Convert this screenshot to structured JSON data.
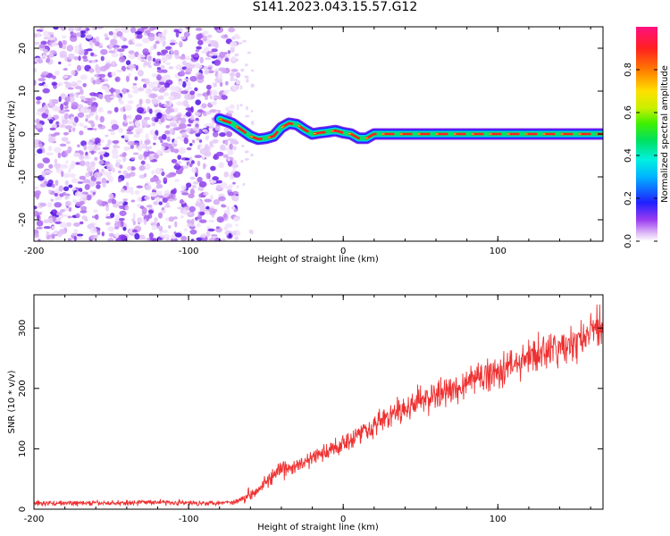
{
  "figure": {
    "title": "S141.2023.043.15.57.G12"
  },
  "chart_data": [
    {
      "type": "heatmap",
      "xlabel": "Height of straight line (km)",
      "ylabel": "Frequency (Hz)",
      "xlim": [
        -200,
        168
      ],
      "ylim": [
        -25,
        25
      ],
      "x_ticks": [
        -200,
        -100,
        0,
        100
      ],
      "y_ticks": [
        -20,
        -10,
        0,
        10,
        20
      ],
      "colorbar": {
        "label": "Normalized spectral amplitude",
        "range": [
          0,
          1
        ],
        "ticks": [
          0.0,
          0.2,
          0.4,
          0.6,
          0.8
        ],
        "tick_labels": [
          "0.0",
          "0.2",
          "0.4",
          "0.6",
          "0.8"
        ]
      },
      "noise_region_x": [
        -200,
        -72
      ],
      "signal_track": {
        "x": [
          -80,
          -76,
          -72,
          -68,
          -64,
          -60,
          -55,
          -50,
          -45,
          -40,
          -35,
          -30,
          -25,
          -20,
          -15,
          -10,
          -5,
          0,
          5,
          10,
          15,
          20,
          30,
          60,
          100,
          140,
          168
        ],
        "freq": [
          3.5,
          3.0,
          2.5,
          1.5,
          0.5,
          -0.5,
          -1.2,
          -1.0,
          -0.5,
          1.5,
          2.5,
          2.2,
          1.0,
          0.0,
          0.3,
          0.5,
          0.8,
          0.3,
          0.0,
          -1.0,
          -1.0,
          0.0,
          0.0,
          0.0,
          0.0,
          0.0,
          0.0
        ]
      }
    },
    {
      "type": "line",
      "series": [
        {
          "name": "SNR",
          "color": "#ee3030",
          "x": [
            -200,
            -150,
            -120,
            -100,
            -80,
            -70,
            -60,
            -50,
            -40,
            -30,
            -20,
            -10,
            0,
            10,
            20,
            30,
            40,
            50,
            60,
            70,
            80,
            90,
            100,
            110,
            120,
            130,
            140,
            150,
            160,
            168
          ],
          "y": [
            10,
            10,
            12,
            10,
            11,
            12,
            25,
            45,
            65,
            70,
            85,
            95,
            110,
            125,
            140,
            155,
            165,
            180,
            190,
            195,
            210,
            220,
            230,
            240,
            250,
            260,
            265,
            275,
            290,
            310
          ]
        }
      ],
      "xlabel": "Height of straight line (km)",
      "ylabel": "SNR (10 * v/v)",
      "xlim": [
        -200,
        168
      ],
      "ylim": [
        0,
        355
      ],
      "x_ticks": [
        -200,
        -100,
        0,
        100
      ],
      "y_ticks": [
        0,
        100,
        200,
        300
      ]
    }
  ]
}
